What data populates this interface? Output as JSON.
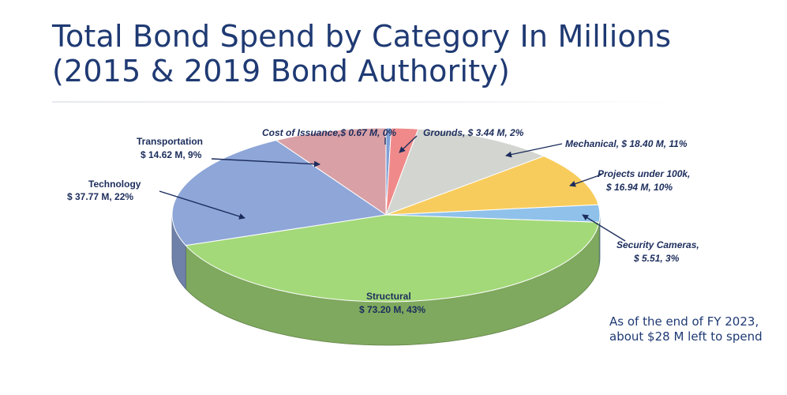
{
  "title_line1": "Total Bond Spend by Category In Millions",
  "title_line2": "(2015 & 2019 Bond Authority)",
  "note": "As of the end of FY 2023, about $28 M left to spend",
  "chart_data": {
    "type": "pie",
    "title": "Total Bond Spend by Category In Millions (2015 & 2019 Bond Authority)",
    "unit": "$ M",
    "slices": [
      {
        "name": "Cost of Issuance",
        "value": 0.67,
        "percent": 0,
        "label": "Cost of Issuance,$ 0.67 M, 0%",
        "color": "#7f9fd6"
      },
      {
        "name": "Grounds",
        "value": 3.44,
        "percent": 2,
        "label": "Grounds, $ 3.44 M, 2%",
        "color": "#f08a8a"
      },
      {
        "name": "Mechanical",
        "value": 18.4,
        "percent": 11,
        "label": "Mechanical, $ 18.40 M, 11%",
        "color": "#d3d6d0"
      },
      {
        "name": "Projects under 100k",
        "value": 16.94,
        "percent": 10,
        "label1": "Projects under 100k,",
        "label2": "$ 16.94 M, 10%",
        "color": "#f8cc5c"
      },
      {
        "name": "Security Cameras",
        "value": 5.51,
        "percent": 3,
        "label1": "Security Cameras,",
        "label2": "$ 5.51, 3%",
        "color": "#8fc1ea"
      },
      {
        "name": "Structural",
        "value": 73.2,
        "percent": 43,
        "label1": "Structural",
        "label2": "$ 73.20 M, 43%",
        "color": "#a3d979"
      },
      {
        "name": "Technology",
        "value": 37.77,
        "percent": 22,
        "label1": "Technology",
        "label2": "$ 37.77 M, 22%",
        "color": "#8ea6d8"
      },
      {
        "name": "Transportation",
        "value": 14.62,
        "percent": 9,
        "label1": "Transportation",
        "label2": "$ 14.62 M, 9%",
        "color": "#d9a0a6"
      }
    ],
    "style": "3d-pie",
    "legend": "none"
  }
}
